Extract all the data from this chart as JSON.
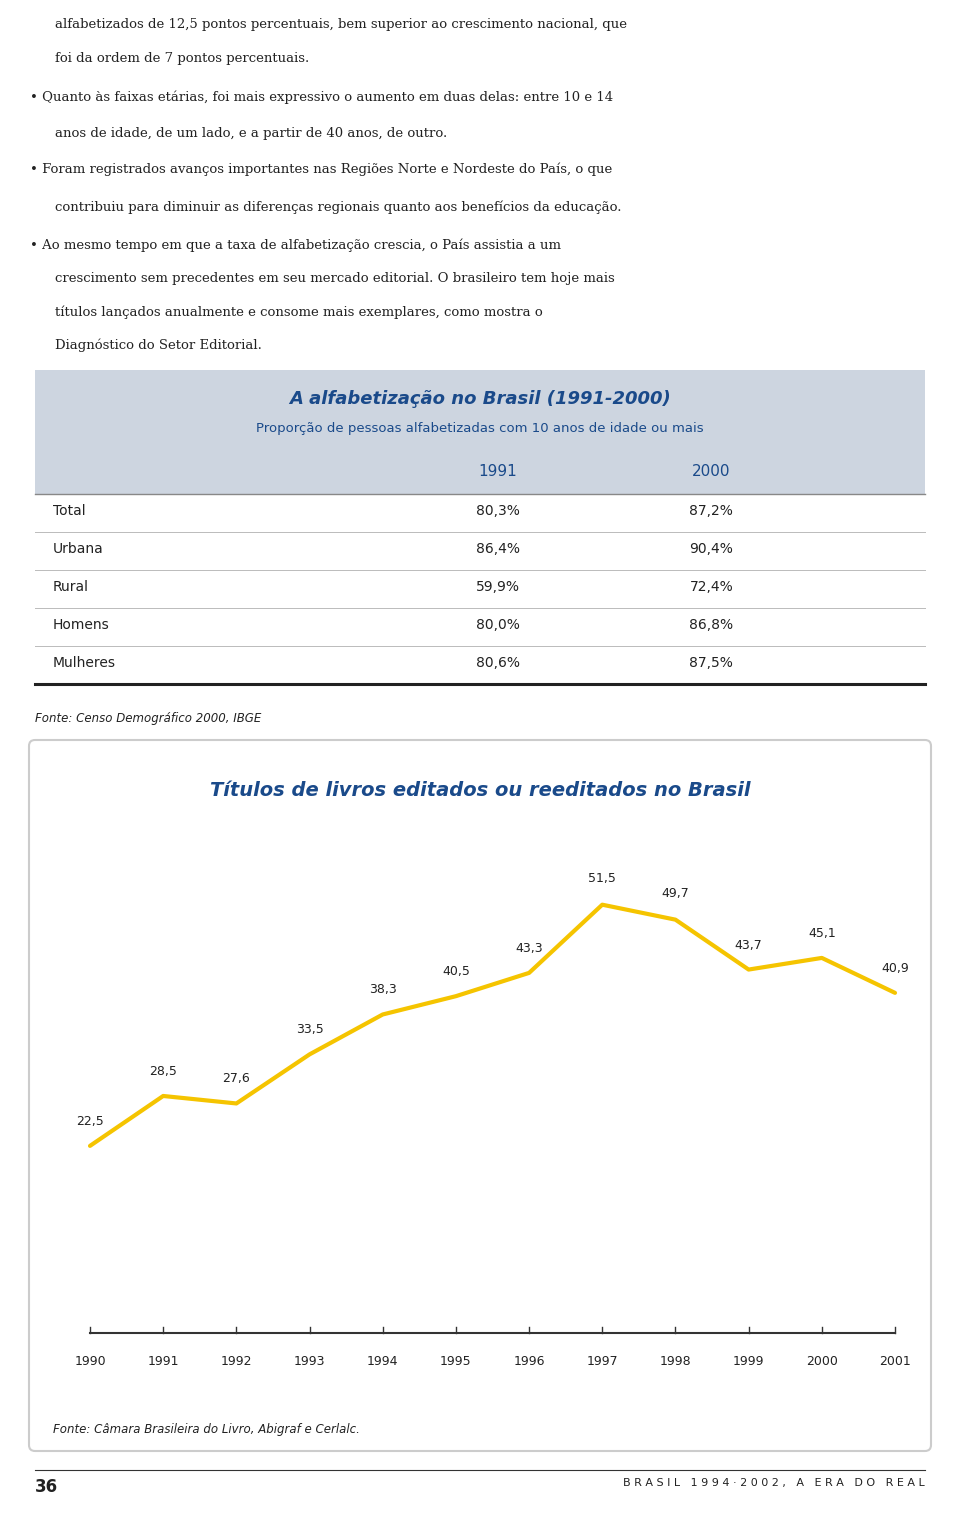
{
  "page_bg": "#ffffff",
  "text_color": "#222222",
  "top_text": [
    "alfabetizados de 12,5 pontos percentuais, bem superior ao crescimento nacional, que",
    "foi da ordem de 7 pontos percentuais.",
    "• Quanto às faixas etárias, foi mais expressivo o aumento em duas delas: entre 10 e 14",
    "anos de idade, de um lado, e a partir de 40 anos, de outro.",
    "• Foram registrados avanços importantes nas Regiões Norte e Nordeste do País, o que",
    "contribuiu para diminuir as diferenças regionais quanto aos benefícios da educação.",
    "• Ao mesmo tempo em que a taxa de alfabetização crescia, o País assistia a um",
    "crescimento sem precedentes em seu mercado editorial. O brasileiro tem hoje mais",
    "títulos lançados anualmente e consome mais exemplares, como mostra o",
    "Diagnóstico do Setor Editorial."
  ],
  "table_title": "A alfabetização no Brasil (1991-2000)",
  "table_subtitle": "Proporção de pessoas alfabetizadas com 10 anos de idade ou mais",
  "table_header_bg": "#cdd5e0",
  "table_header_color": "#1a4a8a",
  "table_rows": [
    [
      "Total",
      "80,3%",
      "87,2%"
    ],
    [
      "Urbana",
      "86,4%",
      "90,4%"
    ],
    [
      "Rural",
      "59,9%",
      "72,4%"
    ],
    [
      "Homens",
      "80,0%",
      "86,8%"
    ],
    [
      "Mulheres",
      "80,6%",
      "87,5%"
    ]
  ],
  "table_row_bg_main": "#ffffff",
  "table_source": "Fonte: Censo Demográfico 2000, IBGE",
  "chart_title": "Títulos de livros editados ou reeditados no Brasil",
  "chart_title_color": "#1a4a8a",
  "chart_source": "Fonte: Câmara Brasileira do Livro, Abigraf e Cerlalc.",
  "chart_years": [
    1990,
    1991,
    1992,
    1993,
    1994,
    1995,
    1996,
    1997,
    1998,
    1999,
    2000,
    2001
  ],
  "chart_values": [
    22.5,
    28.5,
    27.6,
    33.5,
    38.3,
    40.5,
    43.3,
    51.5,
    49.7,
    43.7,
    45.1,
    40.9
  ],
  "chart_line_color": "#f5c400",
  "chart_bg": "#ffffff",
  "chart_border_color": "#cccccc",
  "footer_text": "36",
  "footer_right": "B R A S I L   1 9 9 4 · 2 0 0 2 ,   A   E R A   D O   R E A L",
  "col1_header": "1991",
  "col2_header": "2000",
  "line_separator_color": "#888888",
  "line_thick_color": "#222222"
}
